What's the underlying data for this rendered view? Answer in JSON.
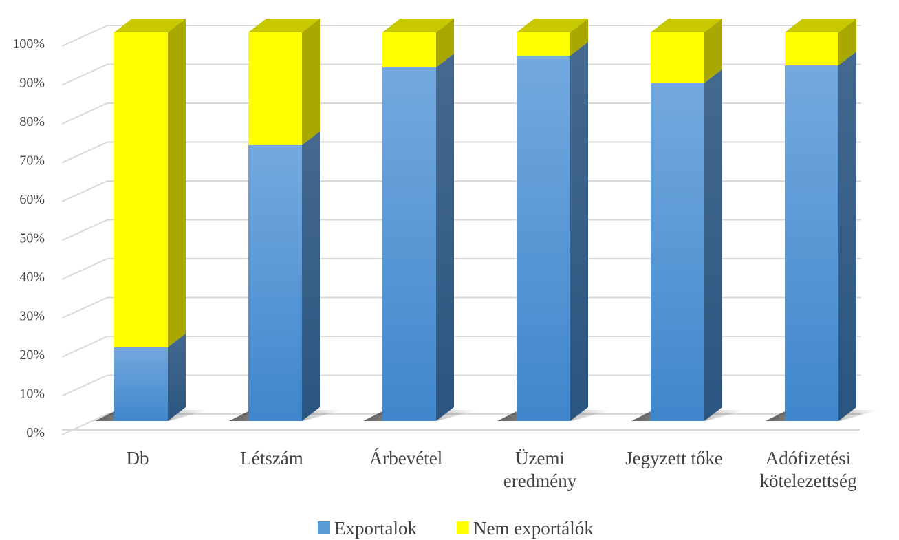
{
  "chart_data": {
    "type": "bar",
    "stacked": true,
    "stacking": "percent",
    "three_d": true,
    "categories": [
      [
        "Db"
      ],
      [
        "Létszám"
      ],
      [
        "Árbevétel"
      ],
      [
        "Üzemi",
        "eredmény"
      ],
      [
        "Jegyzett tőke"
      ],
      [
        "Adófizetési",
        "kötelezettség"
      ]
    ],
    "series": [
      {
        "name": "Exportalok",
        "values": [
          19,
          71,
          91,
          94,
          87,
          91.5
        ],
        "color": "#5b9bd5"
      },
      {
        "name": "Nem exportálók",
        "values": [
          81,
          29,
          9,
          6,
          13,
          8.5
        ],
        "color": "#ffff00"
      }
    ],
    "ylim": [
      0,
      100
    ],
    "yticks": [
      "0%",
      "10%",
      "20%",
      "30%",
      "40%",
      "50%",
      "60%",
      "70%",
      "80%",
      "90%",
      "100%"
    ],
    "grid": true,
    "legend": "bottom-center",
    "title": "",
    "xlabel": "",
    "ylabel": ""
  }
}
